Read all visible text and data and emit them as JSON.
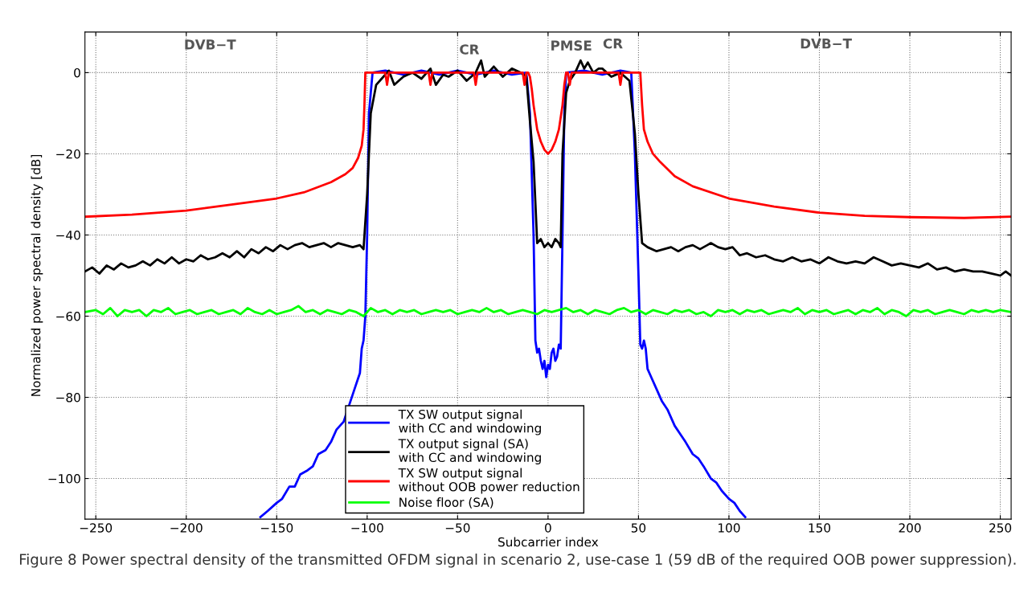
{
  "chart_data": {
    "type": "line",
    "xlabel": "Subcarrier index",
    "ylabel": "Normalized power spectral density [dB]",
    "xlim": [
      -256,
      256
    ],
    "ylim": [
      -110,
      10
    ],
    "xticks": [
      -250,
      -200,
      -150,
      -100,
      -50,
      0,
      50,
      100,
      150,
      200,
      250
    ],
    "yticks": [
      -100,
      -80,
      -60,
      -40,
      -20,
      0
    ],
    "grid": true,
    "legend": "bottom",
    "line_style": "solid",
    "marker": "none",
    "series": [
      {
        "name": "TX SW output signal\nwith CC and windowing",
        "color": "#0000ff",
        "x": [
          -159,
          -155,
          -150,
          -147,
          -143,
          -140,
          -137,
          -133,
          -130,
          -127,
          -123,
          -120,
          -117,
          -113,
          -110,
          -107,
          -104,
          -103,
          -102,
          -101,
          -100,
          -99,
          -97,
          -90,
          -80,
          -70,
          -60,
          -50,
          -40,
          -30,
          -20,
          -12,
          -10,
          -8,
          -7,
          -6,
          -5,
          -4,
          -3,
          -2,
          -1,
          0,
          1,
          2,
          3,
          4,
          5,
          6,
          7,
          8,
          9,
          10,
          20,
          30,
          40,
          46,
          48,
          50,
          51,
          52,
          53,
          54,
          55,
          57,
          60,
          63,
          66,
          70,
          73,
          76,
          80,
          83,
          86,
          90,
          93,
          96,
          100,
          103,
          106,
          109
        ],
        "values": [
          -109.5,
          -108,
          -106,
          -105,
          -102,
          -102,
          -99,
          -98,
          -97,
          -94,
          -93,
          -91,
          -88,
          -86,
          -82,
          -78,
          -74,
          -68,
          -66,
          -60,
          -40,
          -10,
          0,
          0.5,
          -0.5,
          0.5,
          -0.5,
          0.5,
          -0.5,
          0.5,
          -0.5,
          0,
          -10,
          -40,
          -66,
          -69,
          -68,
          -71,
          -73,
          -71,
          -75,
          -72,
          -73,
          -69,
          -68,
          -71,
          -70,
          -67,
          -68,
          -40,
          -10,
          0,
          0.5,
          -0.5,
          0.5,
          0,
          -20,
          -50,
          -67,
          -68,
          -66,
          -68,
          -73,
          -75,
          -78,
          -81,
          -83,
          -87,
          -89,
          -91,
          -94,
          -95,
          -97,
          -100,
          -101,
          -103,
          -105,
          -106,
          -108,
          -109.5
        ]
      },
      {
        "name": "TX output signal (SA)\nwith CC and windowing",
        "color": "#000000",
        "x": [
          -256,
          -252,
          -248,
          -244,
          -240,
          -236,
          -232,
          -228,
          -224,
          -220,
          -216,
          -212,
          -208,
          -204,
          -200,
          -196,
          -192,
          -188,
          -184,
          -180,
          -176,
          -172,
          -168,
          -164,
          -160,
          -156,
          -152,
          -148,
          -144,
          -140,
          -136,
          -132,
          -128,
          -124,
          -120,
          -116,
          -112,
          -108,
          -104,
          -102,
          -100,
          -98,
          -95,
          -92,
          -88,
          -85,
          -80,
          -75,
          -70,
          -65,
          -62,
          -58,
          -55,
          -50,
          -45,
          -40,
          -37,
          -35,
          -30,
          -25,
          -20,
          -15,
          -12,
          -10,
          -8,
          -6,
          -4,
          -2,
          0,
          2,
          4,
          6,
          7,
          8,
          10,
          12,
          15,
          18,
          20,
          22,
          25,
          28,
          30,
          35,
          40,
          45,
          48,
          50,
          52,
          55,
          60,
          64,
          68,
          72,
          76,
          80,
          84,
          88,
          90,
          94,
          98,
          102,
          106,
          110,
          115,
          120,
          125,
          130,
          135,
          140,
          145,
          150,
          155,
          160,
          165,
          170,
          175,
          180,
          185,
          190,
          195,
          200,
          205,
          210,
          215,
          220,
          225,
          230,
          235,
          240,
          245,
          250,
          253,
          256
        ],
        "values": [
          -49,
          -48,
          -49.5,
          -47.5,
          -48.5,
          -47,
          -48,
          -47.5,
          -46.5,
          -47.5,
          -46,
          -47,
          -45.5,
          -47,
          -46,
          -46.5,
          -45,
          -46,
          -45.5,
          -44.5,
          -45.5,
          -44,
          -45.5,
          -43.5,
          -44.5,
          -43,
          -44,
          -42.5,
          -43.5,
          -42.5,
          -42,
          -43,
          -42.5,
          -42,
          -43,
          -42,
          -42.5,
          -43,
          -42.5,
          -43.5,
          -30,
          -10,
          -3,
          -1.5,
          0.5,
          -3,
          -1,
          0,
          -1.5,
          1,
          -3,
          -0.5,
          -1,
          0.5,
          -2,
          0,
          3,
          -1,
          1.5,
          -1,
          1,
          0,
          -1,
          -12,
          -22,
          -42,
          -41,
          -43,
          -42,
          -43,
          -41,
          -42,
          -43,
          -20,
          -5,
          -2,
          0,
          3,
          1,
          2.5,
          0,
          1,
          1,
          -1,
          0,
          -2,
          -15,
          -30,
          -42,
          -43,
          -44,
          -43.5,
          -43,
          -44,
          -43,
          -42.5,
          -43.5,
          -42.5,
          -42,
          -43,
          -43.5,
          -43,
          -45,
          -44.5,
          -45.5,
          -45,
          -46,
          -46.5,
          -45.5,
          -46.5,
          -46,
          -47,
          -45.5,
          -46.5,
          -47,
          -46.5,
          -47,
          -45.5,
          -46.5,
          -47.5,
          -47,
          -47.5,
          -48,
          -47,
          -48.5,
          -48,
          -49,
          -48.5,
          -49,
          -49,
          -49.5,
          -50,
          -49,
          -50
        ]
      },
      {
        "name": "TX SW output signal\nwithout OOB power reduction",
        "color": "#ff0000",
        "x": [
          -256,
          -230,
          -200,
          -175,
          -150,
          -135,
          -120,
          -112,
          -108,
          -105,
          -103,
          -102,
          -101.5,
          -101,
          -95,
          -90,
          -89,
          -88,
          -70,
          -66,
          -65,
          -64,
          -45,
          -41,
          -40,
          -39,
          -14,
          -13,
          -12,
          -11,
          -10,
          -9,
          -8,
          -6,
          -4,
          -2,
          0,
          2,
          4,
          6,
          8,
          9,
          10,
          11,
          12,
          13,
          30,
          39,
          40,
          41,
          50,
          51,
          52,
          53,
          55,
          58,
          62,
          70,
          80,
          100,
          125,
          150,
          175,
          200,
          230,
          256
        ],
        "values": [
          -35.5,
          -35,
          -34,
          -32.5,
          -31,
          -29.5,
          -27,
          -25,
          -23.5,
          -21,
          -18,
          -14,
          -8,
          0,
          0,
          0,
          -3,
          0,
          0,
          0,
          -3,
          0,
          0,
          0,
          -3,
          0,
          0,
          -3,
          0,
          0,
          -1,
          -4,
          -8,
          -14,
          -17,
          -19,
          -20,
          -19,
          -17,
          -14,
          -8,
          -3,
          0,
          0,
          -3,
          0,
          0,
          0,
          -3,
          0,
          0,
          0,
          -8,
          -14,
          -17,
          -20,
          -22,
          -25.5,
          -28,
          -31,
          -33,
          -34.5,
          -35.3,
          -35.6,
          -35.8,
          -35.5
        ]
      },
      {
        "name": "Noise floor (SA)",
        "color": "#00ff00",
        "x": [
          -256,
          -250,
          -246,
          -242,
          -238,
          -234,
          -230,
          -226,
          -222,
          -218,
          -214,
          -210,
          -206,
          -202,
          -198,
          -194,
          -190,
          -186,
          -182,
          -178,
          -174,
          -170,
          -166,
          -162,
          -158,
          -154,
          -150,
          -146,
          -142,
          -138,
          -134,
          -130,
          -126,
          -122,
          -118,
          -114,
          -110,
          -106,
          -102,
          -98,
          -94,
          -90,
          -86,
          -82,
          -78,
          -74,
          -70,
          -66,
          -62,
          -58,
          -54,
          -50,
          -46,
          -42,
          -38,
          -34,
          -30,
          -26,
          -22,
          -18,
          -14,
          -10,
          -6,
          -2,
          2,
          6,
          10,
          14,
          18,
          22,
          26,
          30,
          34,
          38,
          42,
          46,
          50,
          54,
          58,
          62,
          66,
          70,
          74,
          78,
          82,
          86,
          90,
          94,
          98,
          102,
          106,
          110,
          114,
          118,
          122,
          126,
          130,
          134,
          138,
          142,
          146,
          150,
          154,
          158,
          162,
          166,
          170,
          174,
          178,
          182,
          186,
          190,
          194,
          198,
          202,
          206,
          210,
          214,
          218,
          222,
          226,
          230,
          234,
          238,
          242,
          246,
          250,
          256
        ],
        "values": [
          -59,
          -58.5,
          -59.5,
          -58,
          -60,
          -58.5,
          -59,
          -58.5,
          -60,
          -58.5,
          -59,
          -58,
          -59.5,
          -59,
          -58.5,
          -59.5,
          -59,
          -58.5,
          -59.5,
          -59,
          -58.5,
          -59.5,
          -58,
          -59,
          -59.5,
          -58.5,
          -59.5,
          -59,
          -58.5,
          -57.5,
          -59,
          -58.5,
          -59.5,
          -58.5,
          -59,
          -59.5,
          -58.5,
          -59,
          -60,
          -58,
          -59,
          -58.5,
          -59.5,
          -58.5,
          -59,
          -58.5,
          -59.5,
          -59,
          -58.5,
          -59,
          -58.5,
          -59.5,
          -59,
          -58.5,
          -59,
          -58,
          -59,
          -58.5,
          -59.5,
          -59,
          -58.5,
          -59,
          -59.5,
          -58.5,
          -59,
          -58.5,
          -58,
          -59,
          -58.5,
          -59.5,
          -58.5,
          -59,
          -59.5,
          -58.5,
          -58,
          -59,
          -58.5,
          -59.5,
          -58.5,
          -59,
          -59.5,
          -58.5,
          -59,
          -58.5,
          -59.5,
          -59,
          -60,
          -58.5,
          -59,
          -58.5,
          -59.5,
          -58.5,
          -59,
          -58.5,
          -59.5,
          -59,
          -58.5,
          -59,
          -58,
          -59.5,
          -58.5,
          -59,
          -58.5,
          -59.5,
          -59,
          -58.5,
          -59.5,
          -58.5,
          -59,
          -58,
          -59.5,
          -58.5,
          -59,
          -60,
          -58.5,
          -59,
          -58.5,
          -59.5,
          -59,
          -58.5,
          -59,
          -59.5,
          -58.5,
          -59,
          -58.5,
          -59,
          -58.5,
          -59
        ]
      }
    ],
    "annotations": [
      "DVB−T",
      "CR",
      "PMSE",
      "CR",
      "DVB−T",
      "Figure 8 Power spectral density of the transmitted OFDM signal in scenario 2, use-case 1 (59 dB of the required OOB power suppression)."
    ]
  }
}
